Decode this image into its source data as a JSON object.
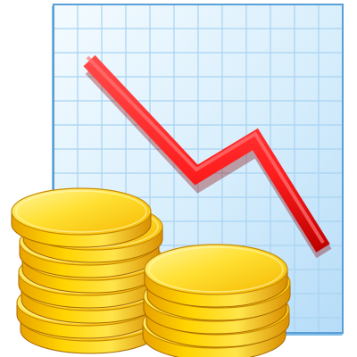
{
  "icon": {
    "name": "falling-revenue-icon",
    "elements": [
      "grid-board",
      "downward-trend-line",
      "gold-coin-stacks"
    ]
  },
  "colors": {
    "board_light": "#f4fbff",
    "board_mid": "#cfe9fb",
    "board_deep": "#b5dcf8",
    "grid_line": "#a9d3f1",
    "board_edge": "#6faee0",
    "line_red": "#ff1e1e",
    "line_red_dark": "#b80000",
    "coin_light": "#fff27a",
    "coin_mid": "#ffd400",
    "coin_dark": "#d99200",
    "coin_edge": "#a86a00"
  },
  "coin_stacks": [
    {
      "name": "left-stack",
      "coin_count": 8
    },
    {
      "name": "right-stack",
      "coin_count": 5
    }
  ]
}
